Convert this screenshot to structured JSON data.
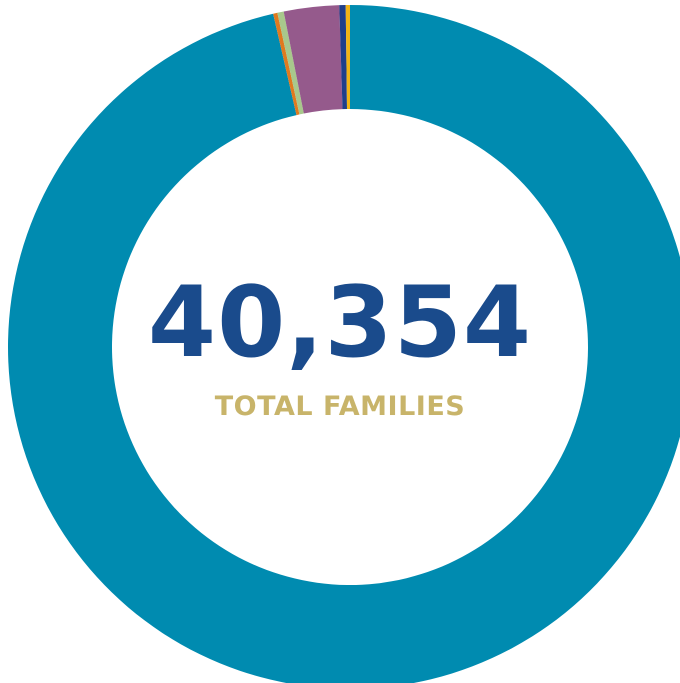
{
  "chart_data": {
    "type": "pie",
    "style": "donut",
    "center_value": "40,354",
    "center_caption": "TOTAL FAMILIES",
    "slices": [
      {
        "value": 96.2,
        "color": "#008bb0"
      },
      {
        "value": 0.2,
        "color": "#e07a1f"
      },
      {
        "value": 0.3,
        "color": "#a8c88c"
      },
      {
        "value": 2.6,
        "color": "#955a8c"
      },
      {
        "value": 0.3,
        "color": "#1f3f8a"
      },
      {
        "value": 0.2,
        "color": "#f2b416"
      }
    ],
    "legend": "none"
  },
  "colors": {
    "center_value": "#1a4b8c",
    "center_caption": "#c8b46a"
  }
}
